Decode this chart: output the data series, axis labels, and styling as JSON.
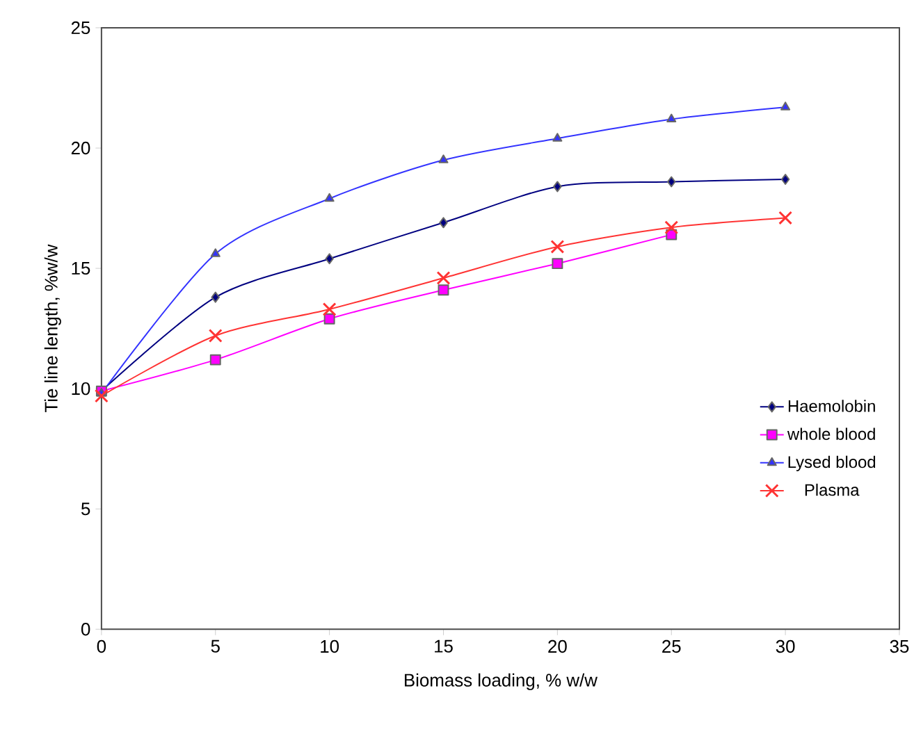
{
  "chart_data": {
    "type": "line",
    "xlabel": "Biomass loading, % w/w",
    "ylabel": "Tie line length, %w/w",
    "x": [
      0,
      5,
      10,
      15,
      20,
      25,
      30
    ],
    "series": [
      {
        "name": "Haemolobin",
        "color": "#000080",
        "marker": "diamond",
        "values": [
          9.9,
          13.8,
          15.4,
          16.9,
          18.4,
          18.6,
          18.7
        ]
      },
      {
        "name": "whole blood",
        "color": "#ff00ff",
        "marker": "square",
        "values": [
          9.9,
          11.2,
          12.9,
          14.1,
          15.2,
          16.4,
          null
        ]
      },
      {
        "name": "Lysed blood",
        "color": "#3333ff",
        "marker": "triangle",
        "values": [
          9.8,
          15.6,
          17.9,
          19.5,
          20.4,
          21.2,
          21.7
        ]
      },
      {
        "name": "Plasma",
        "color": "#ff3333",
        "marker": "cross",
        "values": [
          9.7,
          12.2,
          13.3,
          14.6,
          15.9,
          16.7,
          17.1
        ]
      }
    ],
    "xlim": [
      0,
      35
    ],
    "ylim": [
      0,
      25
    ],
    "xticks": [
      0,
      5,
      10,
      15,
      20,
      25,
      30,
      35
    ],
    "yticks": [
      0,
      5,
      10,
      15,
      20,
      25
    ],
    "legend": "right",
    "grid": false
  }
}
